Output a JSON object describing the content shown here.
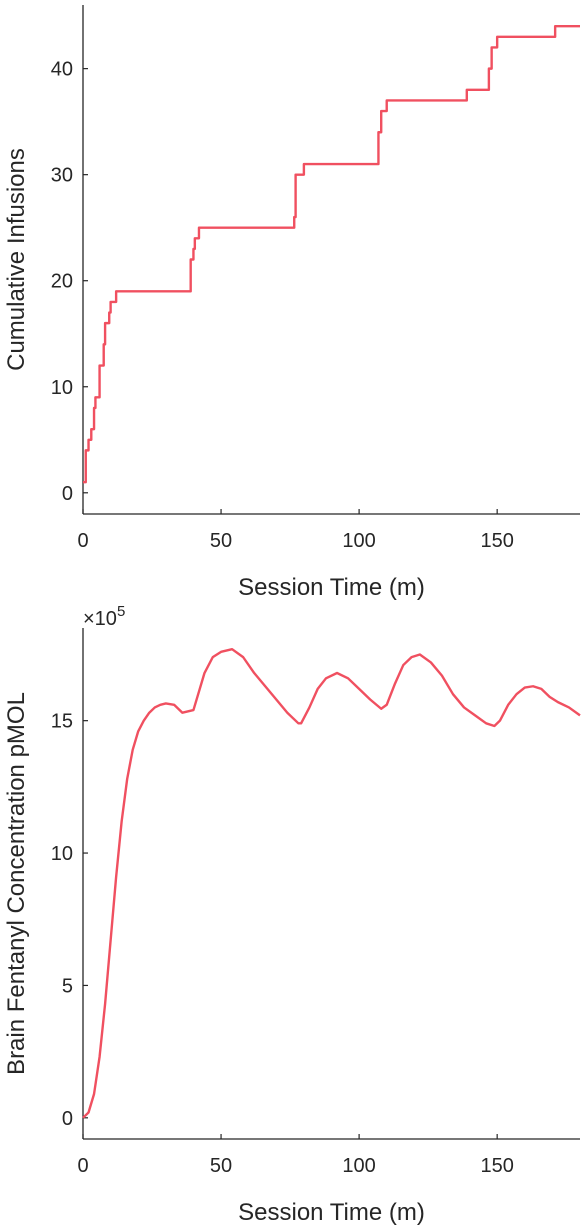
{
  "chart_data": [
    {
      "type": "line",
      "line_style": "stairs",
      "xlabel": "Session Time (m)",
      "ylabel": "Cumulative Infusions",
      "xlim": [
        0,
        180
      ],
      "ylim": [
        -2,
        46
      ],
      "xticks": [
        0,
        50,
        100,
        150
      ],
      "yticks": [
        0,
        10,
        20,
        30,
        40
      ],
      "grid": false,
      "color": "#f05060",
      "series": [
        {
          "x": [
            0,
            1,
            2,
            3,
            4,
            4.5,
            5,
            6,
            7,
            7.5,
            8,
            9,
            9.5,
            10,
            11,
            12,
            39,
            40,
            40.5,
            41,
            42,
            76.5,
            77,
            78,
            80,
            106.5,
            107,
            108,
            110,
            138,
            139,
            146,
            147,
            148,
            150,
            170,
            171,
            180
          ],
          "y": [
            1,
            4,
            5,
            6,
            8,
            9,
            9,
            12,
            12,
            14,
            16,
            16,
            17,
            18,
            18,
            19,
            22,
            23,
            24,
            24,
            25,
            26,
            30,
            30,
            31,
            31,
            34,
            36,
            37,
            37,
            38,
            38,
            40,
            42,
            43,
            43,
            44,
            44
          ]
        }
      ]
    },
    {
      "type": "line",
      "xlabel": "Session Time (m)",
      "ylabel": "Brain Fentanyl Concentration pMOL",
      "y_scale_label": "×10",
      "y_scale_exponent": "5",
      "xlim": [
        0,
        180
      ],
      "ylim": [
        -0.8,
        18.5
      ],
      "xticks": [
        0,
        50,
        100,
        150
      ],
      "yticks": [
        0,
        5,
        10,
        15
      ],
      "grid": false,
      "color": "#f05060",
      "series": [
        {
          "x": [
            0,
            2,
            4,
            6,
            8,
            10,
            12,
            14,
            16,
            18,
            20,
            22,
            24,
            26,
            28,
            30,
            33,
            36,
            40,
            42,
            44,
            47,
            50,
            54,
            58,
            62,
            66,
            70,
            74,
            78,
            79,
            82,
            85,
            88,
            92,
            96,
            100,
            104,
            108,
            110,
            113,
            116,
            119,
            122,
            126,
            130,
            134,
            138,
            142,
            146,
            149,
            151,
            154,
            157,
            160,
            163,
            166,
            169,
            172,
            176,
            180
          ],
          "y": [
            0,
            0.2,
            0.9,
            2.3,
            4.3,
            6.7,
            9.1,
            11.2,
            12.8,
            13.9,
            14.6,
            15.0,
            15.3,
            15.5,
            15.6,
            15.65,
            15.6,
            15.3,
            15.4,
            16.1,
            16.8,
            17.4,
            17.6,
            17.7,
            17.4,
            16.8,
            16.3,
            15.8,
            15.3,
            14.9,
            14.9,
            15.5,
            16.2,
            16.6,
            16.8,
            16.6,
            16.2,
            15.8,
            15.45,
            15.6,
            16.4,
            17.1,
            17.4,
            17.5,
            17.2,
            16.7,
            16.0,
            15.5,
            15.2,
            14.9,
            14.8,
            15.0,
            15.6,
            16.0,
            16.25,
            16.3,
            16.2,
            15.9,
            15.7,
            15.5,
            15.2
          ]
        }
      ]
    }
  ]
}
